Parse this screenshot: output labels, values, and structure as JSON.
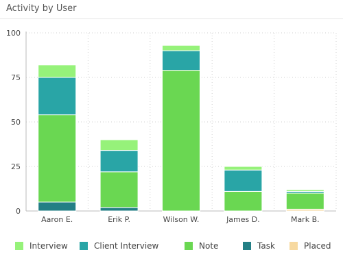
{
  "header": {
    "title": "Activity by User"
  },
  "chart_data": {
    "type": "bar",
    "stacked": true,
    "title": "Activity by User",
    "xlabel": "",
    "ylabel": "",
    "ylim": [
      0,
      100
    ],
    "yticks": [
      0,
      25,
      50,
      75,
      100
    ],
    "grid": true,
    "legend_position": "bottom",
    "categories": [
      "Aaron E.",
      "Erik P.",
      "Wilson W.",
      "James D.",
      "Mark B."
    ],
    "series": [
      {
        "name": "Placed",
        "color": "#f7d9a0",
        "values": [
          0,
          0,
          0,
          0,
          1
        ]
      },
      {
        "name": "Task",
        "color": "#237f85",
        "values": [
          5,
          2,
          0,
          0,
          0
        ]
      },
      {
        "name": "Note",
        "color": "#6ad752",
        "values": [
          49,
          20,
          79,
          11,
          9
        ]
      },
      {
        "name": "Client Interview",
        "color": "#29a5a6",
        "values": [
          21,
          12,
          11,
          12,
          1
        ]
      },
      {
        "name": "Interview",
        "color": "#96f27a",
        "values": [
          7,
          6,
          3,
          2,
          1
        ]
      }
    ]
  },
  "legend": {
    "items": [
      {
        "label": "Interview",
        "color": "#96f27a"
      },
      {
        "label": "Client Interview",
        "color": "#29a5a6"
      },
      {
        "label": "Note",
        "color": "#6ad752"
      },
      {
        "label": "Task",
        "color": "#237f85"
      },
      {
        "label": "Placed",
        "color": "#f7d9a0"
      }
    ]
  }
}
